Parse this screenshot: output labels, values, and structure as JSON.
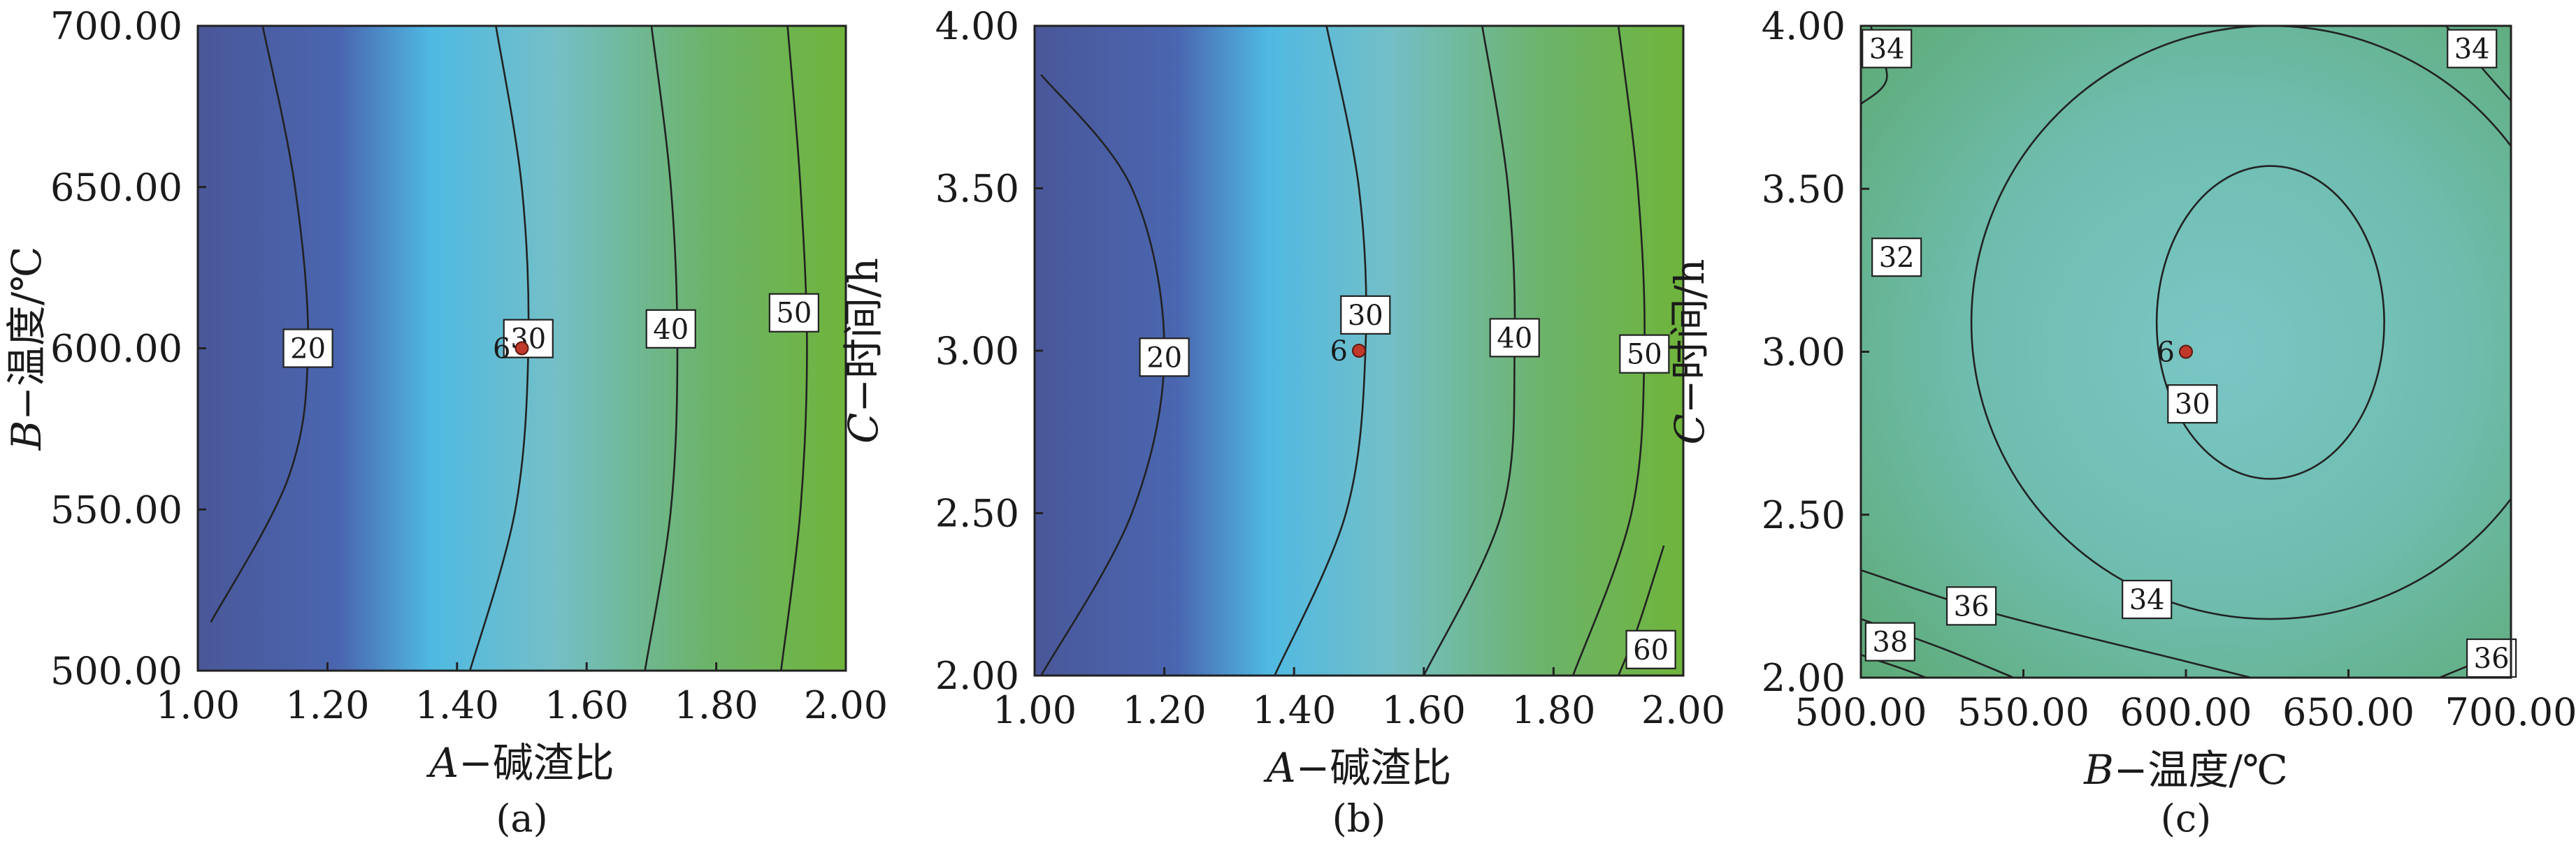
{
  "figure": {
    "panels": [
      {
        "caption": "(a)",
        "xlabel_var": "A",
        "xlabel_rest": "−碱渣比",
        "ylabel_var": "B",
        "ylabel_rest": "−温度/℃",
        "x_ticks": [
          "1.00",
          "1.20",
          "1.40",
          "1.60",
          "1.80",
          "2.00"
        ],
        "y_ticks": [
          "500.00",
          "550.00",
          "600.00",
          "650.00",
          "700.00"
        ],
        "point_label": "6",
        "contour_labels": [
          "20",
          "30",
          "40",
          "50"
        ]
      },
      {
        "caption": "(b)",
        "xlabel_var": "A",
        "xlabel_rest": "−碱渣比",
        "ylabel_var": "C",
        "ylabel_rest": "−时间/h",
        "x_ticks": [
          "1.00",
          "1.20",
          "1.40",
          "1.60",
          "1.80",
          "2.00"
        ],
        "y_ticks": [
          "2.00",
          "2.50",
          "3.00",
          "3.50",
          "4.00"
        ],
        "point_label": "6",
        "contour_labels": [
          "20",
          "30",
          "40",
          "50",
          "60"
        ]
      },
      {
        "caption": "(c)",
        "xlabel_var": "B",
        "xlabel_rest": "−温度/℃",
        "ylabel_var": "C",
        "ylabel_rest": "−时间/h",
        "x_ticks": [
          "500.00",
          "550.00",
          "600.00",
          "650.00",
          "700.00"
        ],
        "y_ticks": [
          "2.00",
          "2.50",
          "3.00",
          "3.50",
          "4.00"
        ],
        "point_label": "6",
        "contour_labels": [
          "30",
          "32",
          "34",
          "34",
          "34",
          "36",
          "36",
          "38"
        ]
      }
    ]
  },
  "chart_data": [
    {
      "type": "heatmap",
      "subtype": "contour",
      "title": "",
      "caption": "(a)",
      "xlabel": "A−碱渣比",
      "ylabel": "B−温度/℃",
      "xlim": [
        1.0,
        2.0
      ],
      "ylim": [
        500.0,
        700.0
      ],
      "x_ticks": [
        1.0,
        1.2,
        1.4,
        1.6,
        1.8,
        2.0
      ],
      "y_ticks": [
        500.0,
        550.0,
        600.0,
        650.0,
        700.0
      ],
      "color_low": "#4a5a9f",
      "color_mid": "#4ab8e0",
      "color_high": "#6fb53c",
      "contour_levels": [
        20,
        30,
        40,
        50
      ],
      "contours": [
        {
          "level": 20,
          "label_at": [
            1.17,
            600
          ],
          "points": [
            [
              1.1,
              700
            ],
            [
              1.15,
              650
            ],
            [
              1.17,
              600
            ],
            [
              1.14,
              560
            ],
            [
              1.02,
              515
            ]
          ]
        },
        {
          "level": 30,
          "label_at": [
            1.51,
            603
          ],
          "points": [
            [
              1.46,
              700
            ],
            [
              1.5,
              650
            ],
            [
              1.51,
              600
            ],
            [
              1.49,
              550
            ],
            [
              1.42,
              500
            ]
          ]
        },
        {
          "level": 40,
          "label_at": [
            1.73,
            606
          ],
          "points": [
            [
              1.7,
              700
            ],
            [
              1.73,
              650
            ],
            [
              1.74,
              600
            ],
            [
              1.73,
              550
            ],
            [
              1.69,
              500
            ]
          ]
        },
        {
          "level": 50,
          "label_at": [
            1.92,
            611
          ],
          "points": [
            [
              1.91,
              700
            ],
            [
              1.93,
              650
            ],
            [
              1.94,
              600
            ],
            [
              1.93,
              550
            ],
            [
              1.9,
              500
            ]
          ]
        }
      ],
      "design_point": {
        "x": 1.5,
        "y": 600.0,
        "label": "6"
      }
    },
    {
      "type": "heatmap",
      "subtype": "contour",
      "title": "",
      "caption": "(b)",
      "xlabel": "A−碱渣比",
      "ylabel": "C−时间/h",
      "xlim": [
        1.0,
        2.0
      ],
      "ylim": [
        2.0,
        4.0
      ],
      "x_ticks": [
        1.0,
        1.2,
        1.4,
        1.6,
        1.8,
        2.0
      ],
      "y_ticks": [
        2.0,
        2.5,
        3.0,
        3.5,
        4.0
      ],
      "color_low": "#4a5a9f",
      "color_mid": "#4ab8e0",
      "color_high": "#6fb53c",
      "contour_levels": [
        20,
        30,
        40,
        50,
        60
      ],
      "contours": [
        {
          "level": 20,
          "label_at": [
            1.2,
            2.98
          ],
          "points": [
            [
              1.01,
              3.85
            ],
            [
              1.15,
              3.5
            ],
            [
              1.2,
              3.0
            ],
            [
              1.15,
              2.5
            ],
            [
              1.01,
              2.0
            ]
          ]
        },
        {
          "level": 30,
          "label_at": [
            1.51,
            3.11
          ],
          "points": [
            [
              1.45,
              4.0
            ],
            [
              1.5,
              3.5
            ],
            [
              1.51,
              3.0
            ],
            [
              1.48,
              2.5
            ],
            [
              1.37,
              2.0
            ]
          ]
        },
        {
          "level": 40,
          "label_at": [
            1.74,
            3.04
          ],
          "points": [
            [
              1.69,
              4.0
            ],
            [
              1.73,
              3.5
            ],
            [
              1.74,
              3.0
            ],
            [
              1.72,
              2.5
            ],
            [
              1.6,
              2.0
            ]
          ]
        },
        {
          "level": 50,
          "label_at": [
            1.94,
            2.99
          ],
          "points": [
            [
              1.9,
              4.0
            ],
            [
              1.93,
              3.5
            ],
            [
              1.94,
              3.0
            ],
            [
              1.92,
              2.5
            ],
            [
              1.83,
              2.0
            ]
          ]
        },
        {
          "level": 60,
          "label_at": [
            1.95,
            2.08
          ],
          "points": [
            [
              1.97,
              2.4
            ],
            [
              1.93,
              2.15
            ],
            [
              1.9,
              2.0
            ]
          ]
        }
      ],
      "design_point": {
        "x": 1.5,
        "y": 3.0,
        "label": "6"
      }
    },
    {
      "type": "heatmap",
      "subtype": "contour",
      "title": "",
      "caption": "(c)",
      "xlabel": "B−温度/℃",
      "ylabel": "C−时间/h",
      "xlim": [
        500.0,
        700.0
      ],
      "ylim": [
        2.0,
        4.0
      ],
      "x_ticks": [
        500.0,
        550.0,
        600.0,
        650.0,
        700.0
      ],
      "y_ticks": [
        2.0,
        2.5,
        3.0,
        3.5,
        4.0
      ],
      "color_low": "#7cc6c4",
      "color_high": "#5aae6a",
      "contour_levels": [
        30,
        32,
        34,
        36,
        38
      ],
      "contour_ellipses": [
        {
          "level": 30,
          "center": [
            626.0,
            3.09
          ],
          "radii": [
            35.0,
            0.48
          ]
        },
        {
          "level": 32,
          "center": [
            626.0,
            3.09
          ],
          "radii": [
            92.0,
            0.91
          ]
        }
      ],
      "contours": [
        {
          "level": 34,
          "points": [
            [
              500,
              2.33
            ],
            [
              540,
              2.2
            ],
            [
              600,
              2.05
            ],
            [
              620,
              2.0
            ]
          ]
        },
        {
          "level": 34,
          "points": [
            [
              503,
              4.0
            ],
            [
              508,
              3.84
            ],
            [
              500,
              3.76
            ]
          ]
        },
        {
          "level": 34,
          "points": [
            [
              680,
              4.0
            ],
            [
              692,
              3.86
            ],
            [
              700,
              3.77
            ]
          ]
        },
        {
          "level": 36,
          "points": [
            [
              500,
              2.18
            ],
            [
              525,
              2.09
            ],
            [
              547,
              2.0
            ]
          ]
        },
        {
          "level": 36,
          "points": [
            [
              678,
              2.0
            ],
            [
              690,
              2.05
            ],
            [
              700,
              2.1
            ]
          ]
        },
        {
          "level": 38,
          "points": [
            [
              500,
              2.07
            ],
            [
              512,
              2.03
            ],
            [
              520,
              2.0
            ]
          ]
        }
      ],
      "contour_label_positions": [
        {
          "text": "30",
          "at": [
            602,
            2.84
          ]
        },
        {
          "text": "32",
          "at": [
            511,
            3.29
          ]
        },
        {
          "text": "34",
          "at": [
            588,
            2.24
          ]
        },
        {
          "text": "34",
          "at": [
            508,
            3.93
          ]
        },
        {
          "text": "34",
          "at": [
            688,
            3.93
          ]
        },
        {
          "text": "36",
          "at": [
            534,
            2.22
          ]
        },
        {
          "text": "36",
          "at": [
            694,
            2.06
          ]
        },
        {
          "text": "38",
          "at": [
            509,
            2.11
          ]
        }
      ],
      "design_point": {
        "x": 600.0,
        "y": 3.0,
        "label": "6"
      }
    }
  ]
}
